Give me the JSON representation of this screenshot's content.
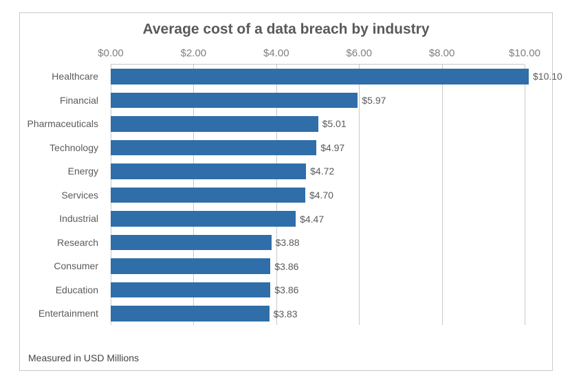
{
  "chart": {
    "type": "bar-horizontal",
    "title": "Average cost of a data breach by industry",
    "footnote": "Measured in USD Millions",
    "background_color": "#ffffff",
    "border_color": "#c8c8c8",
    "title_color": "#595959",
    "title_fontsize": 21,
    "label_color": "#5a5a5a",
    "label_fontsize": 14,
    "axis_label_color": "#7f7f7f",
    "axis_label_fontsize": 15,
    "bar_color": "#2f6ea8",
    "grid_color": "#c8c8c8",
    "x_axis": {
      "min": 0.0,
      "max": 10.0,
      "tick_step": 2.0,
      "ticks": [
        {
          "value": 0.0,
          "label": "$0.00"
        },
        {
          "value": 2.0,
          "label": "$2.00"
        },
        {
          "value": 4.0,
          "label": "$4.00"
        },
        {
          "value": 6.0,
          "label": "$6.00"
        },
        {
          "value": 8.0,
          "label": "$8.00"
        },
        {
          "value": 10.0,
          "label": "$10.00"
        }
      ]
    },
    "rows": [
      {
        "category": "Healthcare",
        "value": 10.1,
        "value_label": "$10.10"
      },
      {
        "category": "Financial",
        "value": 5.97,
        "value_label": "$5.97"
      },
      {
        "category": "Pharmaceuticals",
        "value": 5.01,
        "value_label": "$5.01"
      },
      {
        "category": "Technology",
        "value": 4.97,
        "value_label": "$4.97"
      },
      {
        "category": "Energy",
        "value": 4.72,
        "value_label": "$4.72"
      },
      {
        "category": "Services",
        "value": 4.7,
        "value_label": "$4.70"
      },
      {
        "category": "Industrial",
        "value": 4.47,
        "value_label": "$4.47"
      },
      {
        "category": "Research",
        "value": 3.88,
        "value_label": "$3.88"
      },
      {
        "category": "Consumer",
        "value": 3.86,
        "value_label": "$3.86"
      },
      {
        "category": "Education",
        "value": 3.86,
        "value_label": "$3.86"
      },
      {
        "category": "Entertainment",
        "value": 3.83,
        "value_label": "$3.83"
      }
    ]
  }
}
